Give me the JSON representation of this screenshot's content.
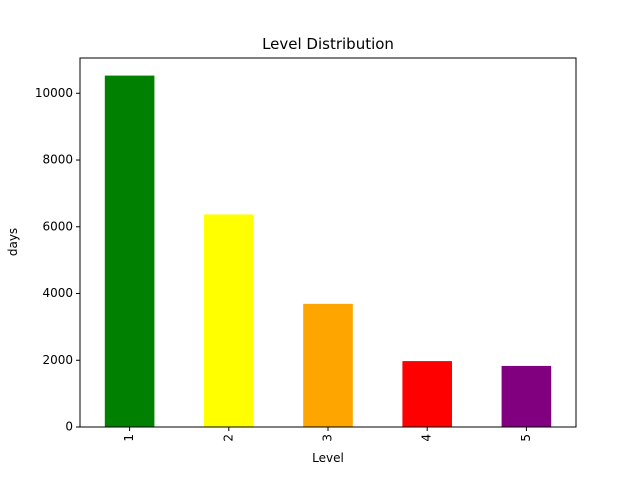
{
  "chart_data": {
    "type": "bar",
    "title": "Level Distribution",
    "xlabel": "Level",
    "ylabel": "days",
    "categories": [
      "1",
      "2",
      "3",
      "4",
      "5"
    ],
    "values": [
      10530,
      6370,
      3690,
      1975,
      1830
    ],
    "colors": [
      "#008000",
      "#ffff00",
      "#ffa500",
      "#ff0000",
      "#800080"
    ],
    "ylim": [
      0,
      11057
    ],
    "yticks": [
      0,
      2000,
      4000,
      6000,
      8000,
      10000
    ],
    "ytick_labels": [
      "0",
      "2000",
      "4000",
      "6000",
      "8000",
      "10000"
    ],
    "xtick_rotation": 90,
    "grid": false,
    "legend": "none"
  }
}
